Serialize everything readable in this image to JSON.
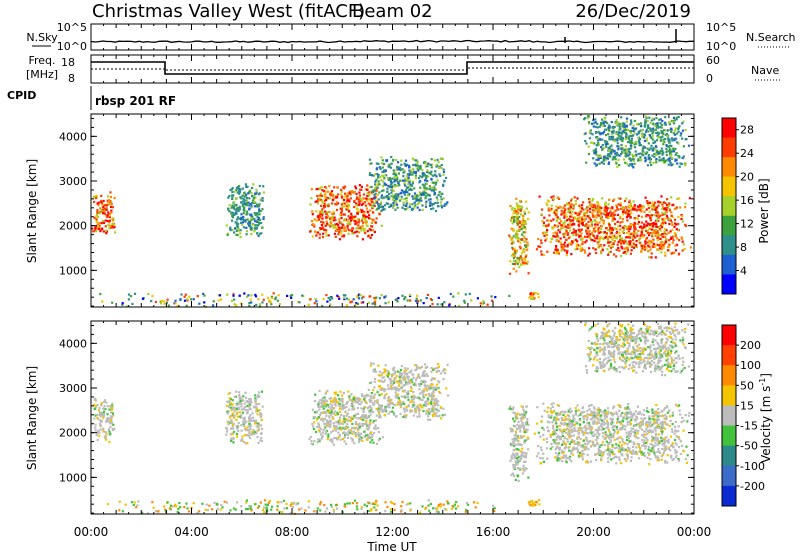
{
  "header": {
    "title": "Christmas Valley West (fitACF)",
    "beam": "Beam 02",
    "date": "26/Dec/2019"
  },
  "noise_panel": {
    "left_label": "N.Sky",
    "left_ticks": [
      "10^5",
      "10^0"
    ],
    "right_ticks": [
      "10^5",
      "10^0"
    ],
    "right_label": "N.Search"
  },
  "freq_panel": {
    "left_label_line1": "Freq.",
    "left_label_line2": "[MHz]",
    "left_ticks": [
      "18",
      "8"
    ],
    "right_ticks": [
      "60",
      "0"
    ],
    "right_label": "Nave"
  },
  "cpid": {
    "label": "CPID",
    "value": "rbsp 201 RF"
  },
  "x_axis": {
    "label": "Time UT",
    "tick_labels": [
      "00:00",
      "04:00",
      "08:00",
      "12:00",
      "16:00",
      "20:00",
      "00:00"
    ]
  },
  "chart_data": [
    {
      "type": "heatmap",
      "title": "",
      "xlabel": "Time UT",
      "ylabel": "Slant Range [km]",
      "xlim": [
        0,
        24
      ],
      "ylim": [
        180,
        4500
      ],
      "y_tick_labels": [
        "1000",
        "2000",
        "3000",
        "4000"
      ],
      "colorbar": {
        "label": "Power [dB]",
        "tick_labels": [
          "4",
          "8",
          "12",
          "16",
          "20",
          "24",
          "28"
        ],
        "range": [
          0,
          30
        ],
        "colors": [
          "#0000ff",
          "#1e5fd2",
          "#2f8f8a",
          "#3da23d",
          "#a6d12a",
          "#f5c400",
          "#ff8a00",
          "#ff3c00",
          "#ff0000"
        ]
      },
      "clusters": [
        {
          "t0": 0.0,
          "t1": 0.95,
          "r0": 1800,
          "r1": 2800,
          "level": "strong"
        },
        {
          "t0": 5.3,
          "t1": 6.9,
          "r0": 1750,
          "r1": 3000,
          "level": "weak"
        },
        {
          "t0": 8.6,
          "t1": 11.6,
          "r0": 1700,
          "r1": 3000,
          "level": "strong"
        },
        {
          "t0": 11.0,
          "t1": 14.2,
          "r0": 2300,
          "r1": 3600,
          "level": "weak"
        },
        {
          "t0": 16.6,
          "t1": 17.4,
          "r0": 900,
          "r1": 2700,
          "level": "medium"
        },
        {
          "t0": 17.3,
          "t1": 17.9,
          "r0": 350,
          "r1": 550,
          "level": "strong"
        },
        {
          "t0": 17.6,
          "t1": 23.9,
          "r0": 1300,
          "r1": 2700,
          "level": "strong"
        },
        {
          "t0": 19.5,
          "t1": 23.8,
          "r0": 3300,
          "r1": 4500,
          "level": "weak"
        },
        {
          "t0": 0.0,
          "t1": 17.0,
          "r0": 200,
          "r1": 520,
          "level": "ground"
        }
      ]
    },
    {
      "type": "heatmap",
      "title": "",
      "xlabel": "Time UT",
      "ylabel": "Slant Range [km]",
      "xlim": [
        0,
        24
      ],
      "ylim": [
        180,
        4500
      ],
      "y_tick_labels": [
        "1000",
        "2000",
        "3000",
        "4000"
      ],
      "colorbar": {
        "label_main": "Velocity [m s",
        "label_sup": "-1",
        "label_end": "]",
        "tick_labels": [
          "200",
          "100",
          "50",
          "15",
          "-15",
          "-50",
          "-100",
          "-200"
        ],
        "colors": [
          "#0a2bd2",
          "#3b6cc8",
          "#2d8a8a",
          "#42c23a",
          "#bcbcbc",
          "#f5c400",
          "#ff8a00",
          "#ff4000",
          "#ff0000"
        ]
      },
      "clusters": [
        {
          "t0": 0.0,
          "t1": 0.95,
          "r0": 1800,
          "r1": 2800,
          "level": "gray"
        },
        {
          "t0": 5.3,
          "t1": 6.9,
          "r0": 1750,
          "r1": 3000,
          "level": "gray"
        },
        {
          "t0": 8.6,
          "t1": 11.6,
          "r0": 1700,
          "r1": 3000,
          "level": "gray"
        },
        {
          "t0": 11.0,
          "t1": 14.2,
          "r0": 2300,
          "r1": 3600,
          "level": "gray"
        },
        {
          "t0": 16.6,
          "t1": 17.4,
          "r0": 900,
          "r1": 2700,
          "level": "gray"
        },
        {
          "t0": 17.3,
          "t1": 17.9,
          "r0": 350,
          "r1": 550,
          "level": "orange"
        },
        {
          "t0": 17.6,
          "t1": 23.9,
          "r0": 1300,
          "r1": 2700,
          "level": "gray"
        },
        {
          "t0": 19.5,
          "t1": 23.8,
          "r0": 3300,
          "r1": 4500,
          "level": "gray"
        },
        {
          "t0": 0.0,
          "t1": 17.0,
          "r0": 200,
          "r1": 520,
          "level": "ground"
        }
      ]
    }
  ]
}
